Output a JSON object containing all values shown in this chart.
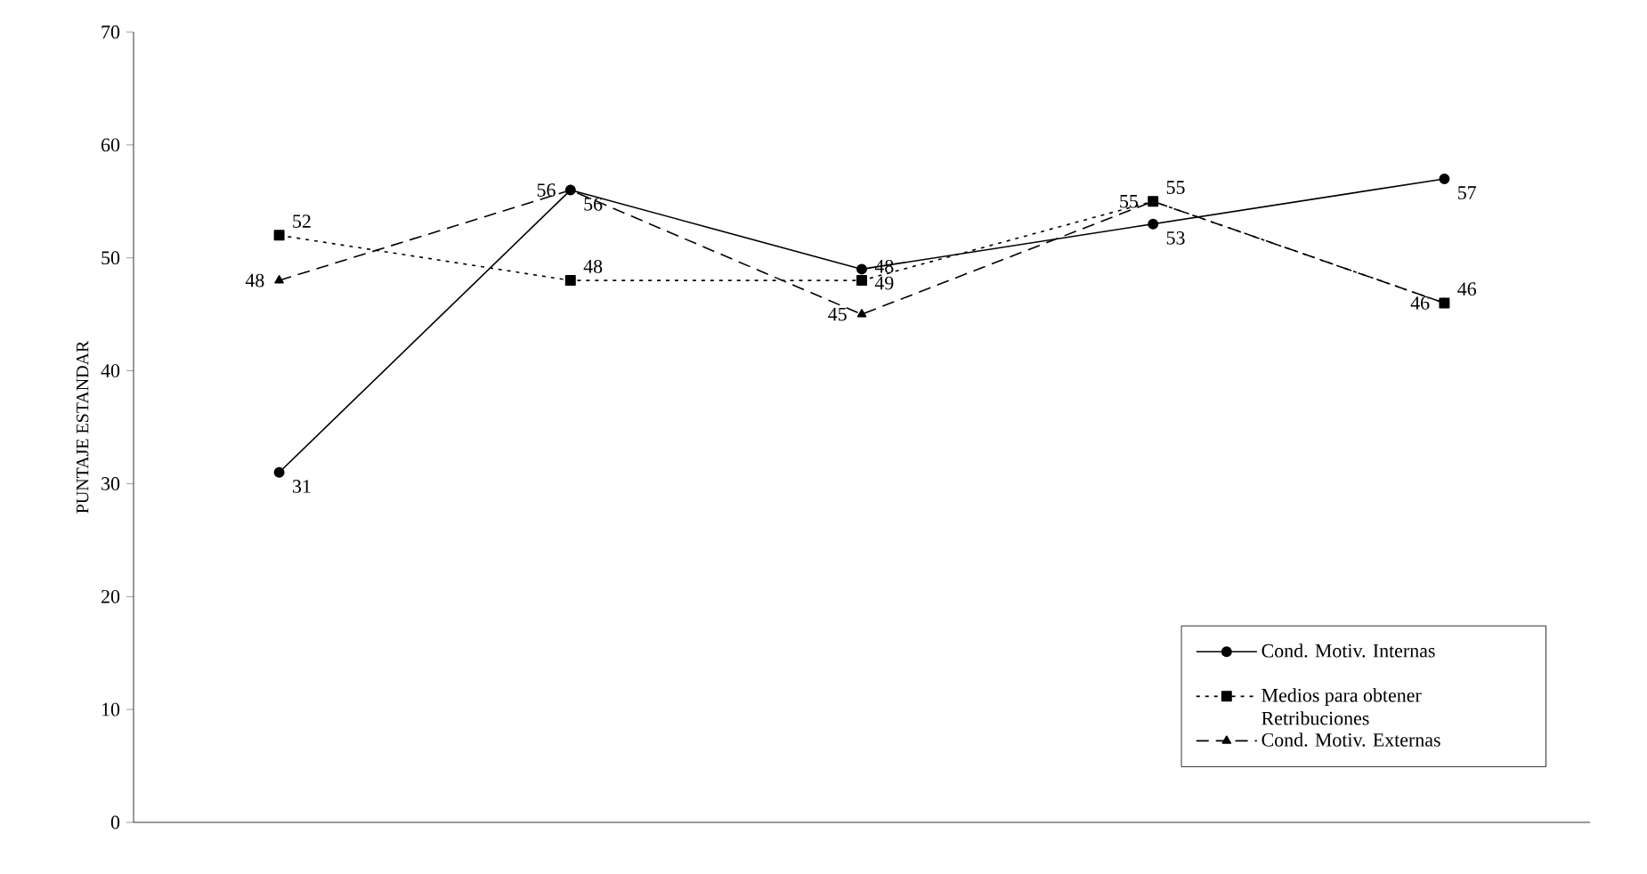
{
  "chart_data": {
    "type": "line",
    "ylabel": "PUNTAJE ESTANDAR",
    "categories": [
      null,
      null,
      null,
      null,
      null
    ],
    "series": [
      {
        "name": "Cond. Motiv. Internas",
        "color": "#000000",
        "values": [
          31,
          56,
          49,
          53,
          57
        ],
        "marker": "circle",
        "line_style": "solid"
      },
      {
        "name": "Medios para obtener Retribuciones",
        "color": "#000000",
        "values": [
          52,
          48,
          48,
          55,
          46
        ],
        "marker": "square",
        "line_style": "dotted"
      },
      {
        "name": "Cond. Motiv. Externas",
        "color": "#000000",
        "values": [
          48,
          56,
          45,
          55,
          46
        ],
        "marker": "triangle",
        "line_style": "dashed"
      }
    ],
    "ylim": [
      0,
      70
    ],
    "yticks": [
      0,
      10,
      20,
      30,
      40,
      50,
      60,
      70
    ],
    "data_labels": true,
    "legend": "bottom right",
    "grid": false,
    "tick_labels": "y"
  }
}
